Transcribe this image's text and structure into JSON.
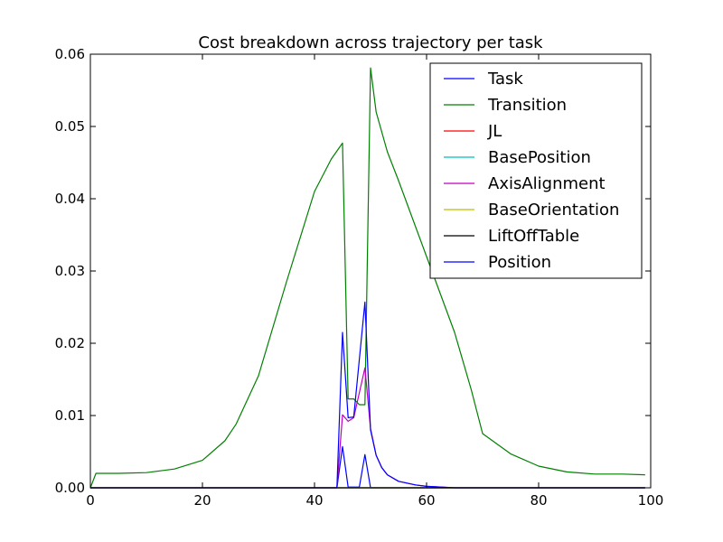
{
  "chart_data": {
    "type": "line",
    "title": "Cost breakdown across trajectory per task",
    "xlabel": "",
    "ylabel": "",
    "xlim": [
      0,
      100
    ],
    "ylim": [
      0,
      0.06
    ],
    "x_ticks": [
      0,
      20,
      40,
      60,
      80,
      100
    ],
    "y_ticks": [
      0.0,
      0.01,
      0.02,
      0.03,
      0.04,
      0.05,
      0.06
    ],
    "x_tick_labels": [
      "0",
      "20",
      "40",
      "60",
      "80",
      "100"
    ],
    "y_tick_labels": [
      "0.00",
      "0.01",
      "0.02",
      "0.03",
      "0.04",
      "0.05",
      "0.06"
    ],
    "grid": false,
    "legend_position": "top-right",
    "series": [
      {
        "name": "Task",
        "color": "#0000ff",
        "points": [
          [
            0,
            0
          ],
          [
            44,
            0
          ],
          [
            45,
            0.0057
          ],
          [
            46,
            0.0001
          ],
          [
            48,
            0.0001
          ],
          [
            49,
            0.0046
          ],
          [
            50,
            0
          ],
          [
            99,
            0
          ]
        ]
      },
      {
        "name": "Transition",
        "color": "#008000",
        "points": [
          [
            0,
            0
          ],
          [
            1,
            0.002
          ],
          [
            5,
            0.002
          ],
          [
            10,
            0.0021
          ],
          [
            15,
            0.0026
          ],
          [
            20,
            0.0038
          ],
          [
            24,
            0.0065
          ],
          [
            26,
            0.0088
          ],
          [
            30,
            0.0155
          ],
          [
            35,
            0.0285
          ],
          [
            40,
            0.041
          ],
          [
            43,
            0.0455
          ],
          [
            45,
            0.0477
          ],
          [
            46,
            0.0123
          ],
          [
            47,
            0.0123
          ],
          [
            48,
            0.0115
          ],
          [
            49,
            0.0115
          ],
          [
            50,
            0.0581
          ],
          [
            51,
            0.052
          ],
          [
            53,
            0.0465
          ],
          [
            55,
            0.0425
          ],
          [
            60,
            0.032
          ],
          [
            65,
            0.0215
          ],
          [
            68,
            0.0135
          ],
          [
            70,
            0.0075
          ],
          [
            75,
            0.0047
          ],
          [
            80,
            0.003
          ],
          [
            85,
            0.0022
          ],
          [
            90,
            0.0019
          ],
          [
            95,
            0.0019
          ],
          [
            99,
            0.0018
          ]
        ]
      },
      {
        "name": "JL",
        "color": "#ff0000",
        "points": [
          [
            0,
            0
          ],
          [
            99,
            0
          ]
        ]
      },
      {
        "name": "BasePosition",
        "color": "#00bfbf",
        "points": [
          [
            0,
            0
          ],
          [
            99,
            0
          ]
        ]
      },
      {
        "name": "AxisAlignment",
        "color": "#bf00bf",
        "points": [
          [
            0,
            0
          ],
          [
            44,
            0
          ],
          [
            45,
            0.0101
          ],
          [
            46,
            0.0092
          ],
          [
            47,
            0.0097
          ],
          [
            49,
            0.0166
          ],
          [
            50,
            0.0082
          ],
          [
            51,
            0.0045
          ],
          [
            52,
            0.0028
          ],
          [
            53,
            0.0018
          ],
          [
            55,
            0.0009
          ],
          [
            58,
            0.0004
          ],
          [
            60,
            0.0002
          ],
          [
            65,
            0
          ],
          [
            99,
            0
          ]
        ]
      },
      {
        "name": "BaseOrientation",
        "color": "#bfbf00",
        "points": [
          [
            0,
            0
          ],
          [
            99,
            0
          ]
        ]
      },
      {
        "name": "LiftOffTable",
        "color": "#000000",
        "points": [
          [
            0,
            0
          ],
          [
            99,
            0
          ]
        ]
      },
      {
        "name": "Position",
        "color": "#0000ff",
        "points": [
          [
            0,
            0
          ],
          [
            44,
            0
          ],
          [
            45,
            0.0215
          ],
          [
            46,
            0.0097
          ],
          [
            47,
            0.0098
          ],
          [
            49,
            0.0257
          ],
          [
            50,
            0.008
          ],
          [
            51,
            0.0045
          ],
          [
            52,
            0.0028
          ],
          [
            53,
            0.0018
          ],
          [
            55,
            0.0009
          ],
          [
            58,
            0.0004
          ],
          [
            60,
            0.0002
          ],
          [
            65,
            0
          ],
          [
            99,
            0
          ]
        ]
      }
    ]
  }
}
